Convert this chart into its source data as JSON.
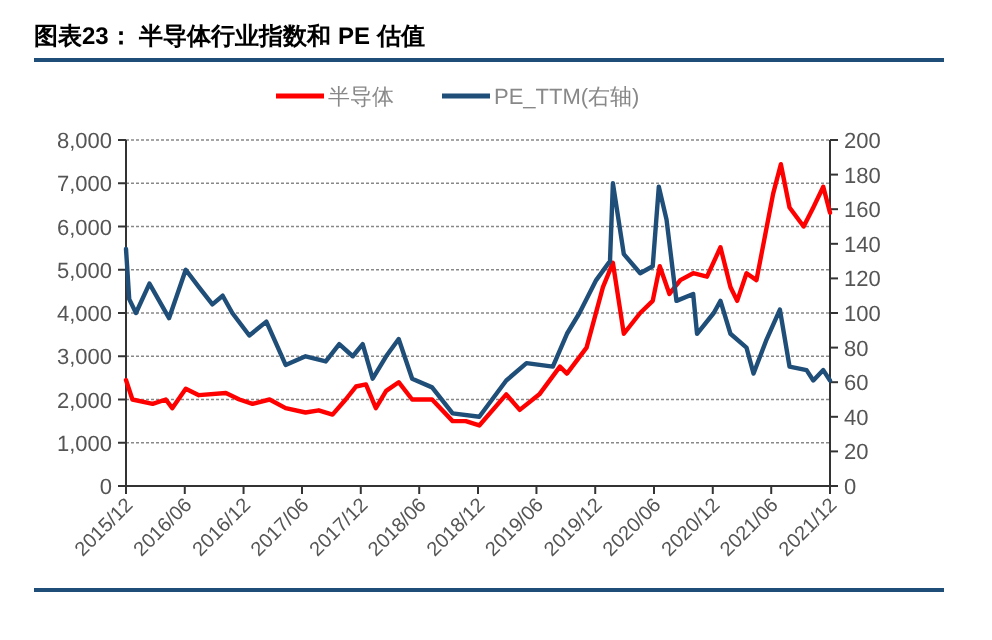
{
  "chart_data": {
    "type": "line",
    "title": "图表23： 半导体行业指数和 PE 估值",
    "xlim": [
      "2015-12",
      "2021-12"
    ],
    "xticks": [
      {
        "value": "2015-12",
        "label": "2015/12"
      },
      {
        "value": "2016-06",
        "label": "2016/06"
      },
      {
        "value": "2016-12",
        "label": "2016/12"
      },
      {
        "value": "2017-06",
        "label": "2017/06"
      },
      {
        "value": "2017-12",
        "label": "2017/12"
      },
      {
        "value": "2018-06",
        "label": "2018/06"
      },
      {
        "value": "2018-12",
        "label": "2018/12"
      },
      {
        "value": "2019-06",
        "label": "2019/06"
      },
      {
        "value": "2019-12",
        "label": "2019/12"
      },
      {
        "value": "2020-06",
        "label": "2020/06"
      },
      {
        "value": "2020-12",
        "label": "2020/12"
      },
      {
        "value": "2021-06",
        "label": "2021/06"
      },
      {
        "value": "2021-12",
        "label": "2021/12"
      }
    ],
    "ylim": [
      0,
      8000
    ],
    "yticks": [
      {
        "value": 0,
        "label": "0"
      },
      {
        "value": 1000,
        "label": "1,000"
      },
      {
        "value": 2000,
        "label": "2,000"
      },
      {
        "value": 3000,
        "label": "3,000"
      },
      {
        "value": 4000,
        "label": "4,000"
      },
      {
        "value": 5000,
        "label": "5,000"
      },
      {
        "value": 6000,
        "label": "6,000"
      },
      {
        "value": 7000,
        "label": "7,000"
      },
      {
        "value": 8000,
        "label": "8,000"
      }
    ],
    "y2lim": [
      0,
      200
    ],
    "y2ticks": [
      0,
      20,
      40,
      60,
      80,
      100,
      120,
      140,
      160,
      180,
      200
    ],
    "grid": "y",
    "legend": "top",
    "series": [
      {
        "name": "半导体",
        "color": "#ff0000",
        "x": [
          "2015-12-01",
          "2015-12-21",
          "2016-02-22",
          "2016-04-03",
          "2016-04-23",
          "2016-06-04",
          "2016-07-15",
          "2016-10-07",
          "2016-11-18",
          "2016-12-29",
          "2017-02-20",
          "2017-04-11",
          "2017-06-12",
          "2017-07-23",
          "2017-09-04",
          "2017-10-15",
          "2017-11-16",
          "2017-12-17",
          "2018-01-17",
          "2018-02-18",
          "2018-03-29",
          "2018-05-10",
          "2018-07-11",
          "2018-09-13",
          "2018-10-24",
          "2018-12-05",
          "2019-02-27",
          "2019-04-10",
          "2019-06-10",
          "2019-08-13",
          "2019-09-04",
          "2019-11-04",
          "2019-12-25",
          "2020-01-25",
          "2020-02-28",
          "2020-04-19",
          "2020-05-28",
          "2020-06-19",
          "2020-07-19",
          "2020-08-22",
          "2020-10-01",
          "2020-11-13",
          "2020-12-25",
          "2021-01-25",
          "2021-02-15",
          "2021-03-16",
          "2021-04-16",
          "2021-06-07",
          "2021-07-01",
          "2021-07-28",
          "2021-09-10",
          "2021-10-10",
          "2021-11-10",
          "2021-12-01"
        ],
        "values": [
          2450,
          2000,
          1900,
          2000,
          1800,
          2250,
          2100,
          2150,
          2000,
          1900,
          2000,
          1800,
          1700,
          1750,
          1650,
          2000,
          2300,
          2350,
          1800,
          2200,
          2400,
          2000,
          2000,
          1500,
          1500,
          1400,
          2120,
          1760,
          2120,
          2760,
          2600,
          3200,
          4600,
          5160,
          3520,
          4000,
          4280,
          5080,
          4440,
          4760,
          4920,
          4840,
          5520,
          4600,
          4280,
          4920,
          4760,
          6760,
          7440,
          6440,
          6000,
          6440,
          6920,
          6320
        ]
      },
      {
        "name": "PE_TTM(右轴)",
        "color": "#1f4e79",
        "axis": "y2",
        "x": [
          "2015-12-01",
          "2015-12-11",
          "2016-01-01",
          "2016-02-12",
          "2016-04-13",
          "2016-06-04",
          "2016-07-15",
          "2016-08-26",
          "2016-09-27",
          "2016-10-27",
          "2016-12-19",
          "2017-02-10",
          "2017-04-11",
          "2017-06-12",
          "2017-08-14",
          "2017-09-25",
          "2017-11-06",
          "2017-12-07",
          "2018-01-07",
          "2018-02-18",
          "2018-03-29",
          "2018-05-10",
          "2018-07-11",
          "2018-09-13",
          "2018-12-05",
          "2019-02-27",
          "2019-05-01",
          "2019-07-22",
          "2019-09-04",
          "2019-10-13",
          "2019-12-04",
          "2020-01-16",
          "2020-01-25",
          "2020-02-28",
          "2020-04-19",
          "2020-05-28",
          "2020-06-16",
          "2020-07-10",
          "2020-08-10",
          "2020-10-01",
          "2020-10-13",
          "2020-12-04",
          "2020-12-25",
          "2021-01-25",
          "2021-03-16",
          "2021-04-07",
          "2021-05-16",
          "2021-06-28",
          "2021-07-28",
          "2021-09-19",
          "2021-10-10",
          "2021-11-10",
          "2021-12-01"
        ],
        "values": [
          137,
          108,
          100,
          117,
          97,
          125,
          115,
          105,
          110,
          100,
          87,
          95,
          70,
          75,
          72,
          82,
          75,
          82,
          62,
          75,
          85,
          62,
          57,
          42,
          40,
          61,
          71,
          69,
          88,
          100,
          119,
          130,
          175,
          134,
          123,
          127,
          173,
          154,
          107,
          111,
          88,
          100,
          107,
          88,
          80,
          65,
          84,
          102,
          69,
          67,
          61,
          67,
          61
        ]
      }
    ]
  }
}
